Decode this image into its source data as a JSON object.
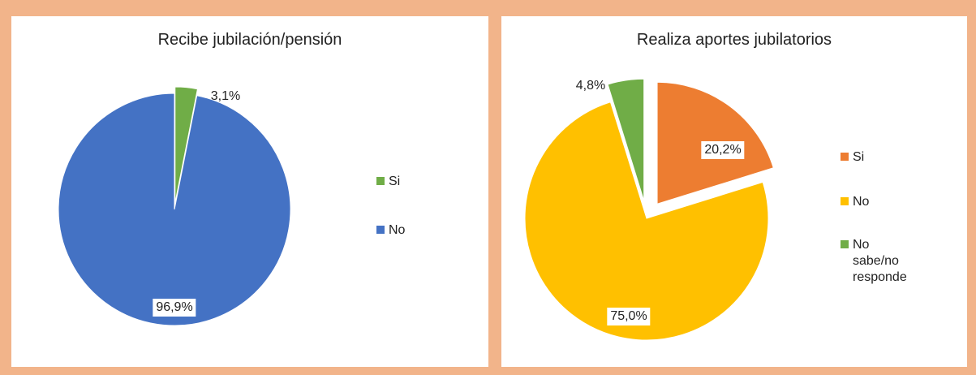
{
  "chart_data": [
    {
      "type": "pie",
      "title": "Recibe jubilación/pensión",
      "slices": [
        {
          "label": "Si",
          "value": 3.1,
          "value_label": "3,1%",
          "color": "#70ad47",
          "exploded": true
        },
        {
          "label": "No",
          "value": 96.9,
          "value_label": "96,9%",
          "color": "#4472c4",
          "exploded": false
        }
      ],
      "legend_position": "right"
    },
    {
      "type": "pie",
      "title": "Realiza aportes jubilatorios",
      "slices": [
        {
          "label": "Si",
          "value": 20.2,
          "value_label": "20,2%",
          "color": "#ed7d31",
          "exploded": true
        },
        {
          "label": "No",
          "value": 75.0,
          "value_label": "75,0%",
          "color": "#ffc000",
          "exploded": false
        },
        {
          "label": "No sabe/no responde",
          "value": 4.8,
          "value_label": "4,8%",
          "color": "#70ad47",
          "exploded": true
        }
      ],
      "legend_position": "right",
      "legend_lines": {
        "No sabe/no responde": [
          "No sabe/no",
          "responde"
        ]
      }
    }
  ]
}
